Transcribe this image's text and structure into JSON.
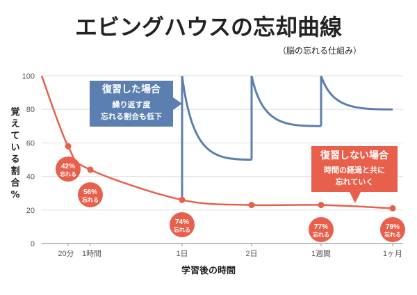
{
  "title": "エビングハウスの忘却曲線",
  "subtitle": "（脳の忘れる仕組み）",
  "colors": {
    "review": "#5b7fb0",
    "no_review": "#e8604c",
    "grid": "#e0e0e0",
    "axis": "#999999"
  },
  "chart_data": {
    "type": "line",
    "ylabel": "覚えている割合%",
    "xlabel": "学習後の時間",
    "ylim": [
      0,
      100
    ],
    "yticks": [
      0,
      20,
      40,
      60,
      80,
      100
    ],
    "xticks": [
      "20分",
      "1時間",
      "1日",
      "2日",
      "1週間",
      "1ヶ月"
    ],
    "series": [
      {
        "name": "復習しない場合",
        "description": "時間の経過と共に忘れていく",
        "points": [
          {
            "x": "0",
            "y": 100
          },
          {
            "x": "20分",
            "y": 58
          },
          {
            "x": "1時間",
            "y": 44
          },
          {
            "x": "1日",
            "y": 26
          },
          {
            "x": "2日",
            "y": 23
          },
          {
            "x": "1週間",
            "y": 23
          },
          {
            "x": "1ヶ月",
            "y": 21
          }
        ]
      },
      {
        "name": "復習した場合",
        "description": "繰り返す度忘れる割合も低下",
        "segments": [
          {
            "from": "1日",
            "to": "2日",
            "start": 100,
            "end": 50
          },
          {
            "from": "2日",
            "to": "1週間",
            "start": 100,
            "end": 70
          },
          {
            "from": "1週間",
            "to": "1ヶ月",
            "start": 100,
            "end": 80
          }
        ]
      }
    ],
    "annotations": [
      {
        "x": "20分",
        "label": "42%",
        "sub": "忘れる"
      },
      {
        "x": "1時間",
        "label": "56%",
        "sub": "忘れる"
      },
      {
        "x": "1日",
        "label": "74%",
        "sub": "忘れる"
      },
      {
        "x": "1週間",
        "label": "77%",
        "sub": "忘れる"
      },
      {
        "x": "1ヶ月",
        "label": "79%",
        "sub": "忘れる"
      }
    ],
    "callouts": {
      "review": {
        "head": "復習した場合",
        "line1": "繰り返す度",
        "line2": "忘れる割合も低下"
      },
      "no_review": {
        "head": "復習しない場合",
        "line1": "時間の経過と共に",
        "line2": "忘れていく"
      }
    }
  }
}
